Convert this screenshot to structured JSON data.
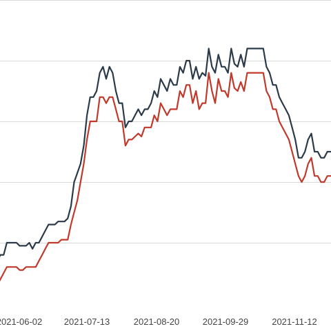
{
  "chart_data": {
    "type": "line",
    "title": "",
    "xlabel": "",
    "ylabel": "",
    "grid": true,
    "ylim": [
      0,
      5
    ],
    "x_tick_labels": [
      "2021-06-02",
      "2021-07-13",
      "2021-08-20",
      "2021-09-29",
      "2021-11-12"
    ],
    "x": [
      1,
      2,
      3,
      4,
      5,
      6,
      7,
      8,
      9,
      10,
      11,
      12,
      13,
      14,
      15,
      16,
      17,
      18,
      19,
      20,
      21,
      22,
      23,
      24,
      25,
      26,
      27,
      28,
      29,
      30,
      31,
      32,
      33,
      34,
      35,
      36,
      37,
      38,
      39,
      40,
      41,
      42,
      43,
      44,
      45,
      46,
      47,
      48,
      49,
      50,
      51,
      52,
      53,
      54,
      55,
      56,
      57,
      58,
      59,
      60,
      61,
      62,
      63,
      64,
      65,
      66,
      67,
      68,
      69,
      70,
      71,
      72,
      73,
      74,
      75,
      76,
      77,
      78,
      79,
      80,
      81,
      82,
      83,
      84,
      85,
      86,
      87,
      88,
      89,
      90,
      91,
      92,
      93,
      94,
      95,
      96,
      97,
      98,
      99,
      100,
      101,
      102,
      103,
      104,
      105,
      106
    ],
    "series": [
      {
        "color": "#2b3a48",
        "values": [
          0.7,
          0.8,
          0.8,
          1.0,
          1.0,
          1.0,
          1.0,
          0.95,
          0.95,
          0.95,
          1.0,
          0.9,
          1.0,
          1.0,
          1.1,
          1.2,
          1.3,
          1.3,
          1.3,
          1.35,
          1.35,
          1.35,
          1.4,
          1.6,
          2.0,
          2.15,
          2.3,
          2.6,
          3.1,
          3.4,
          3.4,
          3.5,
          3.8,
          3.9,
          3.7,
          3.9,
          3.8,
          3.5,
          3.3,
          3.3,
          2.9,
          3.0,
          3.0,
          3.1,
          3.2,
          3.1,
          3.2,
          3.2,
          3.3,
          3.5,
          3.4,
          3.7,
          3.6,
          3.5,
          3.7,
          3.6,
          3.6,
          3.9,
          3.8,
          4.0,
          4.0,
          3.7,
          3.9,
          3.7,
          3.8,
          3.75,
          4.2,
          3.9,
          3.8,
          4.1,
          3.9,
          3.9,
          3.8,
          4.2,
          3.95,
          3.9,
          4.1,
          3.9,
          4.2,
          4.2,
          4.2,
          4.2,
          4.2,
          4.2,
          3.9,
          3.8,
          3.6,
          3.6,
          3.4,
          3.3,
          3.2,
          3.1,
          2.9,
          2.7,
          2.4,
          2.4,
          2.5,
          2.7,
          2.8,
          2.5,
          2.5,
          2.4,
          2.4,
          2.5,
          2.5,
          2.5
        ]
      },
      {
        "color": "#c0392b",
        "values": [
          0.3,
          0.4,
          0.5,
          0.6,
          0.6,
          0.6,
          0.6,
          0.55,
          0.55,
          0.6,
          0.6,
          0.6,
          0.6,
          0.7,
          0.8,
          0.9,
          1.0,
          1.0,
          1.0,
          1.0,
          1.05,
          1.05,
          1.05,
          1.3,
          1.5,
          1.7,
          2.0,
          2.3,
          2.7,
          3.0,
          3.0,
          3.0,
          3.4,
          3.4,
          3.3,
          3.4,
          3.4,
          3.2,
          3.0,
          3.0,
          2.6,
          2.7,
          2.7,
          2.75,
          2.8,
          2.75,
          2.9,
          2.9,
          2.9,
          3.1,
          3.0,
          3.3,
          3.2,
          3.1,
          3.2,
          3.2,
          3.2,
          3.5,
          3.4,
          3.6,
          3.6,
          3.3,
          3.5,
          3.2,
          3.3,
          3.3,
          3.8,
          3.5,
          3.3,
          3.7,
          3.5,
          3.5,
          3.4,
          3.8,
          3.55,
          3.5,
          3.65,
          3.5,
          3.8,
          3.8,
          3.8,
          3.8,
          3.8,
          3.8,
          3.5,
          3.4,
          3.2,
          3.2,
          3.0,
          2.9,
          2.8,
          2.7,
          2.5,
          2.3,
          2.1,
          2.0,
          2.1,
          2.3,
          2.4,
          2.1,
          2.1,
          2.0,
          2.0,
          2.1,
          2.1,
          2.1
        ]
      }
    ]
  }
}
